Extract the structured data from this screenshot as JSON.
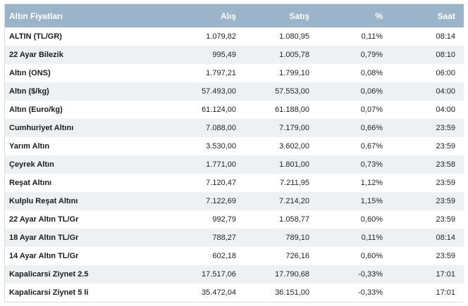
{
  "table": {
    "headers": [
      "Altın Fiyatları",
      "Alış",
      "Satış",
      "%",
      "Saat"
    ],
    "rows": [
      [
        "ALTIN (TL/GR)",
        "1.079,82",
        "1.080,95",
        "0,11%",
        "08:14"
      ],
      [
        "22 Ayar Bilezik",
        "995,49",
        "1.005,78",
        "0,79%",
        "08:10"
      ],
      [
        "Altın (ONS)",
        "1.797,21",
        "1.799,10",
        "0,08%",
        "06:00"
      ],
      [
        "Altın ($/kg)",
        "57.493,00",
        "57.553,00",
        "0,06%",
        "04:00"
      ],
      [
        "Altın (Euro/kg)",
        "61.124,00",
        "61.188,00",
        "0,07%",
        "04:00"
      ],
      [
        "Cumhuriyet Altını",
        "7.088,00",
        "7.179,00",
        "0,66%",
        "23:59"
      ],
      [
        "Yarım Altın",
        "3.530,00",
        "3.602,00",
        "0,67%",
        "23:59"
      ],
      [
        "Çeyrek Altın",
        "1.771,00",
        "1.801,00",
        "0,73%",
        "23:58"
      ],
      [
        "Reşat Altını",
        "7.120,47",
        "7.211,95",
        "1,12%",
        "23:59"
      ],
      [
        "Kulplu Reşat Altını",
        "7.122,69",
        "7.214,20",
        "1,15%",
        "23:59"
      ],
      [
        "22 Ayar Altın TL/Gr",
        "992,79",
        "1.058,77",
        "0,60%",
        "23:59"
      ],
      [
        "18 Ayar Altın TL/Gr",
        "788,27",
        "789,10",
        "0,11%",
        "08:14"
      ],
      [
        "14 Ayar Altın TL/Gr",
        "602,18",
        "726,16",
        "0,60%",
        "23:59"
      ],
      [
        "Kapalicarsi Ziynet 2.5",
        "17.517,06",
        "17.790,68",
        "-0,33%",
        "17:01"
      ],
      [
        "Kapalicarsi Ziynet 5 li",
        "35.472,04",
        "36.151,00",
        "-0,33%",
        "17:01"
      ]
    ]
  },
  "colors": {
    "header_bg": "#9bb4c9",
    "header_text": "#ffffff",
    "row_alt_bg": "#eef1f4",
    "row_bg": "#ffffff"
  }
}
